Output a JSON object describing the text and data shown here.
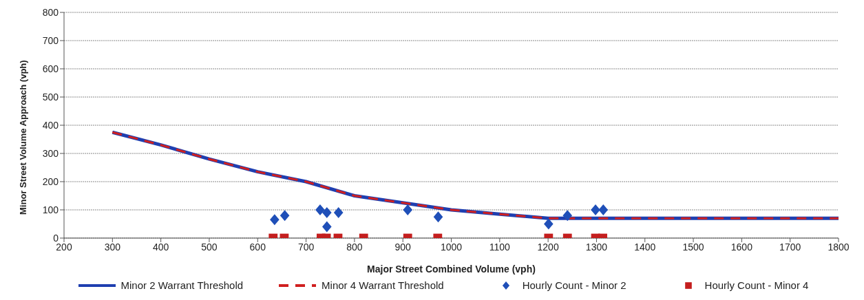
{
  "chart_data": {
    "type": "scatter",
    "xlabel": "Major Street Combined Volume (vph)",
    "ylabel": "Minor Street Volume Approach (vph)",
    "xlim": [
      200,
      1800
    ],
    "xticks": [
      200,
      300,
      400,
      500,
      600,
      700,
      800,
      900,
      1000,
      1100,
      1200,
      1300,
      1400,
      1500,
      1600,
      1700,
      1800
    ],
    "ylim": [
      0,
      800
    ],
    "yticks": [
      0,
      100,
      200,
      300,
      400,
      500,
      600,
      700,
      800
    ],
    "grid": "y",
    "legend": "bottom",
    "series": [
      {
        "name": "Minor 2 Warrant Threshold",
        "type": "line",
        "line_style": "solid",
        "color": "#1f3fb0",
        "x": [
          300,
          400,
          500,
          600,
          700,
          800,
          900,
          1000,
          1100,
          1200,
          1800
        ],
        "values": [
          375,
          330,
          280,
          235,
          200,
          150,
          125,
          100,
          85,
          70,
          70
        ]
      },
      {
        "name": "Minor 4 Warrant Threshold",
        "type": "line",
        "line_style": "dashed",
        "color": "#d02020",
        "x": [
          300,
          400,
          500,
          600,
          700,
          800,
          900,
          1000,
          1100,
          1200,
          1800
        ],
        "values": [
          375,
          330,
          280,
          235,
          200,
          150,
          125,
          100,
          85,
          70,
          70
        ]
      },
      {
        "name": "Hourly Count - Minor 2",
        "marker": "diamond",
        "color": "#1f4fb8",
        "x": [
          635,
          656,
          729,
          743,
          743,
          767,
          910,
          973,
          1201,
          1240,
          1298,
          1314
        ],
        "values": [
          65,
          80,
          100,
          90,
          40,
          90,
          100,
          75,
          50,
          80,
          100,
          100
        ]
      },
      {
        "name": "Hourly Count - Minor 4",
        "marker": "square",
        "color": "#c41e1e",
        "x": [
          632,
          655,
          731,
          742,
          766,
          819,
          910,
          972,
          1201,
          1240,
          1298,
          1313
        ],
        "values": [
          0,
          0,
          0,
          0,
          0,
          0,
          0,
          0,
          0,
          0,
          0,
          0
        ]
      }
    ]
  }
}
